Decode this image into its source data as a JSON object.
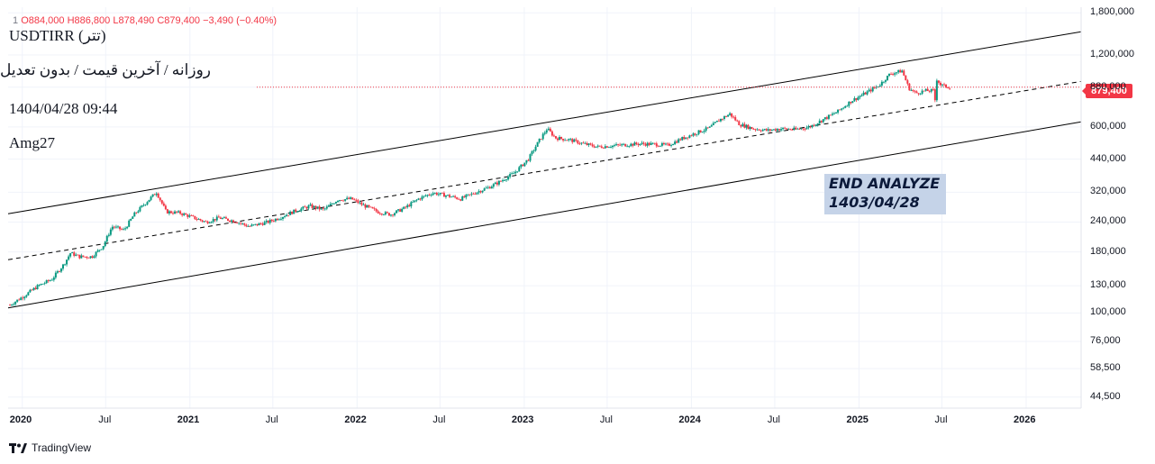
{
  "header": {
    "ohlc_line": "1 ... O884,000 H886,800 L878,490 C879,400 −3,490 (−0.40%)",
    "symbol_hint": "1",
    "open": "O884,000",
    "high": "H886,800",
    "low": "L878,490",
    "close": "C879,400",
    "change": "−3,490 (−0.40%)"
  },
  "info": {
    "title": "USDTIRR (تتر)",
    "subtitle": "روزانه / آخرین قیمت / بدون تعدیل",
    "datetime": "1404/04/28 09:44",
    "author": "Amg27"
  },
  "annotation": {
    "line1": "END ANALYZE",
    "line2": "1403/04/28"
  },
  "price_tag": "879,400",
  "branding": "TradingView",
  "colors": {
    "up": "#089981",
    "down": "#f23645",
    "channel": "#000000",
    "annotation_bg": "#c5d3e8"
  },
  "chart_data": {
    "type": "line",
    "scale": "log",
    "title": "USDTIRR (تتر)",
    "ylim": [
      40000,
      1900000
    ],
    "y_ticks": [
      "1,800,000",
      "1,200,000",
      "880,000",
      "600,000",
      "440,000",
      "320,000",
      "240,000",
      "180,000",
      "130,000",
      "100,000",
      "76,000",
      "58,500",
      "44,500"
    ],
    "x_ticks": [
      "2020",
      "Jul",
      "2021",
      "Jul",
      "2022",
      "Jul",
      "2023",
      "Jul",
      "2024",
      "Jul",
      "2025",
      "Jul",
      "2026"
    ],
    "xlim": [
      "2019-12-01",
      "2026-05-01"
    ],
    "last_price": 879400,
    "series": [
      {
        "values": [
          [
            "2019-12-05",
            108000
          ],
          [
            "2020-01-05",
            118000
          ],
          [
            "2020-02-05",
            130000
          ],
          [
            "2020-03-05",
            138000
          ],
          [
            "2020-04-01",
            160000
          ],
          [
            "2020-04-15",
            178000
          ],
          [
            "2020-05-05",
            172000
          ],
          [
            "2020-06-01",
            172000
          ],
          [
            "2020-06-25",
            190000
          ],
          [
            "2020-07-15",
            230000
          ],
          [
            "2020-08-10",
            222000
          ],
          [
            "2020-09-01",
            258000
          ],
          [
            "2020-10-01",
            295000
          ],
          [
            "2020-10-20",
            320000
          ],
          [
            "2020-11-10",
            265000
          ],
          [
            "2020-12-10",
            262000
          ],
          [
            "2021-01-10",
            250000
          ],
          [
            "2021-02-05",
            240000
          ],
          [
            "2021-03-05",
            250000
          ],
          [
            "2021-04-10",
            242000
          ],
          [
            "2021-05-10",
            230000
          ],
          [
            "2021-06-20",
            240000
          ],
          [
            "2021-07-15",
            250000
          ],
          [
            "2021-08-20",
            268000
          ],
          [
            "2021-09-20",
            280000
          ],
          [
            "2021-10-20",
            270000
          ],
          [
            "2021-11-20",
            298000
          ],
          [
            "2021-12-20",
            300000
          ],
          [
            "2022-01-15",
            282000
          ],
          [
            "2022-02-15",
            265000
          ],
          [
            "2022-03-15",
            258000
          ],
          [
            "2022-04-15",
            275000
          ],
          [
            "2022-05-15",
            300000
          ],
          [
            "2022-06-15",
            318000
          ],
          [
            "2022-07-15",
            310000
          ],
          [
            "2022-08-15",
            300000
          ],
          [
            "2022-09-15",
            318000
          ],
          [
            "2022-10-15",
            335000
          ],
          [
            "2022-11-10",
            355000
          ],
          [
            "2022-12-10",
            385000
          ],
          [
            "2023-01-10",
            440000
          ],
          [
            "2023-02-01",
            520000
          ],
          [
            "2023-02-20",
            590000
          ],
          [
            "2023-03-10",
            540000
          ],
          [
            "2023-04-10",
            530000
          ],
          [
            "2023-05-10",
            510000
          ],
          [
            "2023-06-10",
            495000
          ],
          [
            "2023-07-10",
            500000
          ],
          [
            "2023-08-10",
            505000
          ],
          [
            "2023-09-10",
            510000
          ],
          [
            "2023-10-10",
            508000
          ],
          [
            "2023-11-10",
            502000
          ],
          [
            "2023-12-10",
            535000
          ],
          [
            "2024-01-10",
            565000
          ],
          [
            "2024-02-10",
            595000
          ],
          [
            "2024-03-01",
            640000
          ],
          [
            "2024-03-25",
            680000
          ],
          [
            "2024-04-15",
            615000
          ],
          [
            "2024-05-15",
            590000
          ],
          [
            "2024-06-15",
            580000
          ],
          [
            "2024-07-15",
            590000
          ],
          [
            "2024-08-15",
            585000
          ],
          [
            "2024-09-15",
            600000
          ],
          [
            "2024-10-15",
            645000
          ],
          [
            "2024-11-15",
            695000
          ],
          [
            "2024-12-15",
            770000
          ],
          [
            "2025-01-15",
            830000
          ],
          [
            "2025-02-15",
            900000
          ],
          [
            "2025-03-10",
            1000000
          ],
          [
            "2025-04-05",
            1030000
          ],
          [
            "2025-04-20",
            870000
          ],
          [
            "2025-05-05",
            830000
          ],
          [
            "2025-05-25",
            850000
          ],
          [
            "2025-06-12",
            850000
          ],
          [
            "2025-06-17",
            760000
          ],
          [
            "2025-06-20",
            950000
          ],
          [
            "2025-06-28",
            900000
          ],
          [
            "2025-07-10",
            885000
          ],
          [
            "2025-07-19",
            879400
          ]
        ]
      }
    ],
    "channel_lines": [
      {
        "style": "solid",
        "from": [
          "2019-12-01",
          260000
        ],
        "to": [
          "2026-05-01",
          1500000
        ]
      },
      {
        "style": "dashed",
        "from": [
          "2019-12-01",
          167000
        ],
        "to": [
          "2026-05-01",
          930000
        ]
      },
      {
        "style": "solid",
        "from": [
          "2019-12-01",
          105000
        ],
        "to": [
          "2026-05-01",
          630000
        ]
      }
    ]
  }
}
